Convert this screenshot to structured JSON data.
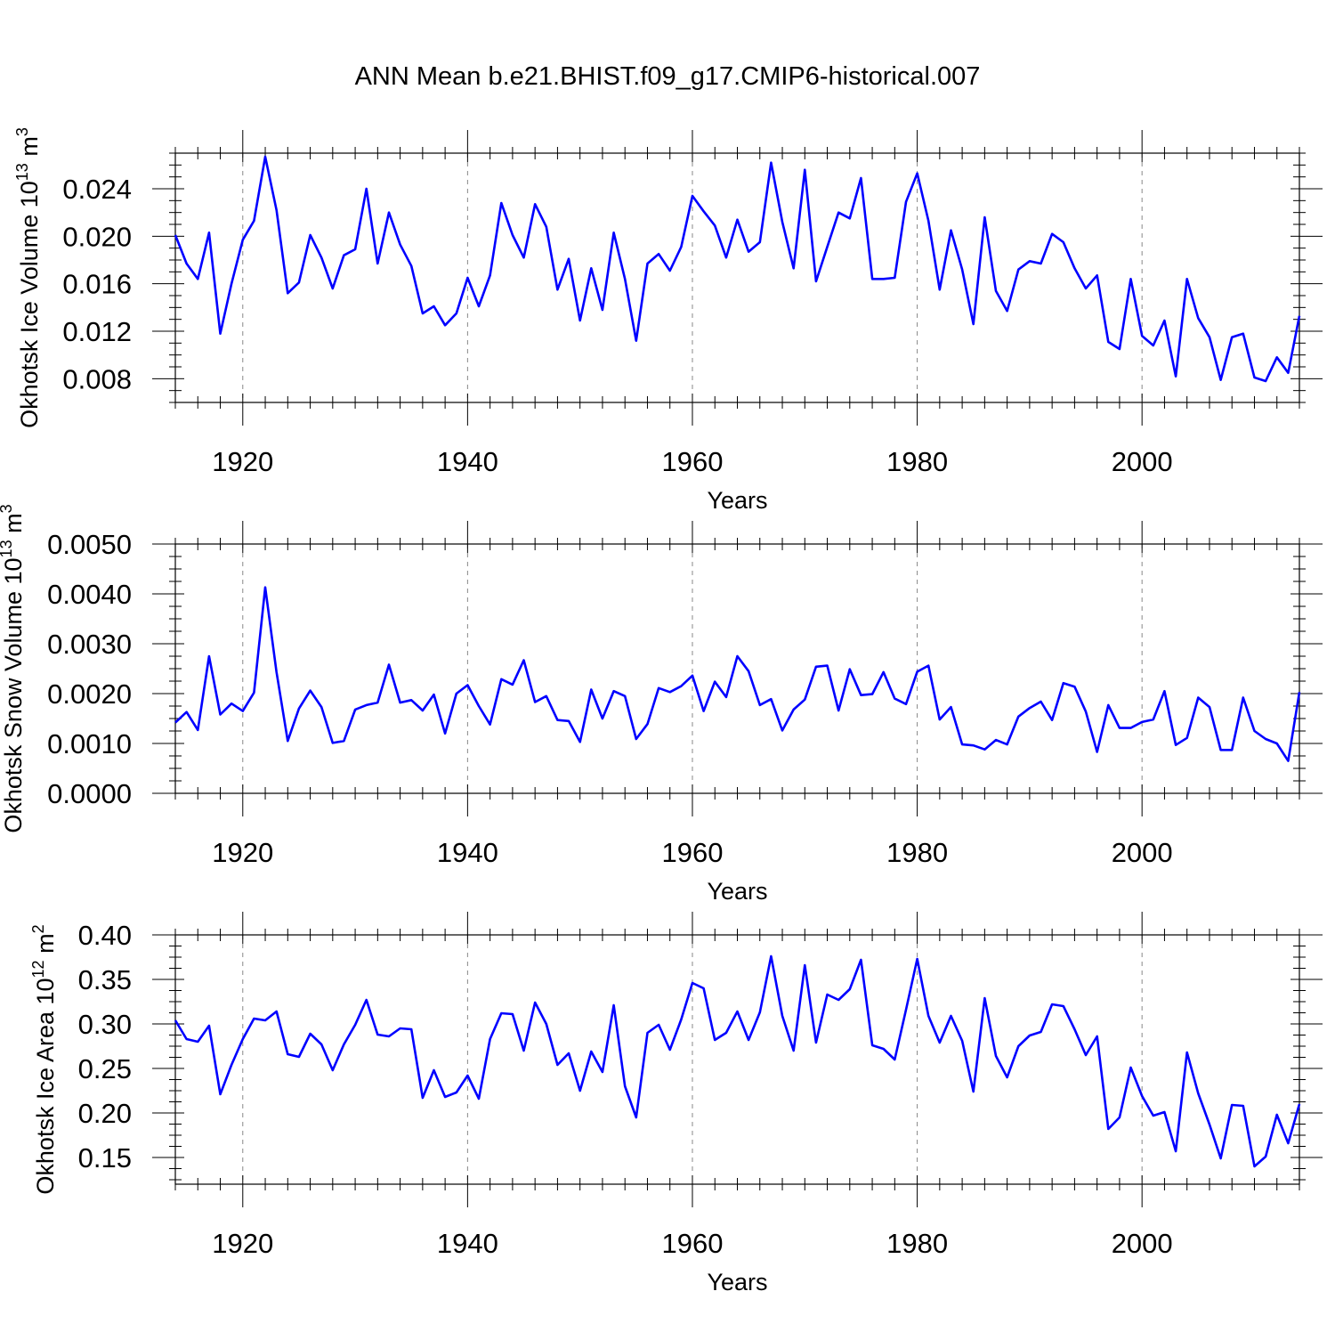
{
  "title": "ANN Mean b.e21.BHIST.f09_g17.CMIP6-historical.007",
  "line_color": "#0000ff",
  "chart_data": [
    {
      "type": "line",
      "xlabel": "Years",
      "ylabel": {
        "main": "Okhotsk Ice Volume 10",
        "exp": "13",
        "unit": " m",
        "unit_exp": "3"
      },
      "x_start": 1914,
      "xlim": [
        1914,
        2014
      ],
      "ylim": [
        0.006,
        0.027
      ],
      "yticks": [
        0.008,
        0.012,
        0.016,
        0.02,
        0.024
      ],
      "yticklabels": [
        "0.008",
        "0.012",
        "0.016",
        "0.020",
        "0.024"
      ],
      "xticks": [
        1920,
        1940,
        1960,
        1980,
        2000
      ],
      "xticklabels": [
        "1920",
        "1940",
        "1960",
        "1980",
        "2000"
      ],
      "grid": "dashed vertical at major x ticks",
      "values": [
        0.0201,
        0.0177,
        0.0164,
        0.0203,
        0.0118,
        0.016,
        0.0197,
        0.0213,
        0.0267,
        0.0222,
        0.0152,
        0.0161,
        0.0201,
        0.0182,
        0.0156,
        0.0184,
        0.0189,
        0.024,
        0.0177,
        0.022,
        0.0193,
        0.0175,
        0.0135,
        0.0141,
        0.0125,
        0.0135,
        0.0165,
        0.0141,
        0.0167,
        0.0228,
        0.0201,
        0.0182,
        0.0227,
        0.0208,
        0.0155,
        0.0181,
        0.0129,
        0.0173,
        0.0138,
        0.0203,
        0.0164,
        0.0112,
        0.0177,
        0.0185,
        0.0171,
        0.0191,
        0.0234,
        0.0221,
        0.0209,
        0.0182,
        0.0214,
        0.0187,
        0.0195,
        0.0262,
        0.0212,
        0.0173,
        0.0256,
        0.0162,
        0.0191,
        0.022,
        0.0215,
        0.0249,
        0.0164,
        0.0164,
        0.0165,
        0.0229,
        0.0253,
        0.0213,
        0.0155,
        0.0205,
        0.0172,
        0.0126,
        0.0216,
        0.0154,
        0.0137,
        0.0172,
        0.0179,
        0.0177,
        0.0202,
        0.0195,
        0.0173,
        0.0156,
        0.0167,
        0.0111,
        0.0105,
        0.0164,
        0.0116,
        0.0108,
        0.0129,
        0.0082,
        0.0164,
        0.0131,
        0.0115,
        0.0079,
        0.0115,
        0.0118,
        0.0081,
        0.0078,
        0.0098,
        0.0085,
        0.0133
      ]
    },
    {
      "type": "line",
      "xlabel": "Years",
      "ylabel": {
        "main": "Okhotsk Snow Volume 10",
        "exp": "13",
        "unit": " m",
        "unit_exp": "3"
      },
      "x_start": 1914,
      "xlim": [
        1914,
        2014
      ],
      "ylim": [
        0.0,
        0.005
      ],
      "yticks": [
        0.0,
        0.001,
        0.002,
        0.003,
        0.004,
        0.005
      ],
      "yticklabels": [
        "0.0000",
        "0.0010",
        "0.0020",
        "0.0030",
        "0.0040",
        "0.0050"
      ],
      "xticks": [
        1920,
        1940,
        1960,
        1980,
        2000
      ],
      "xticklabels": [
        "1920",
        "1940",
        "1960",
        "1980",
        "2000"
      ],
      "grid": "dashed vertical at major x ticks",
      "values": [
        0.00142,
        0.00163,
        0.00127,
        0.00275,
        0.00158,
        0.0018,
        0.00165,
        0.00202,
        0.00413,
        0.00243,
        0.00105,
        0.0017,
        0.00206,
        0.00173,
        0.00101,
        0.00105,
        0.00168,
        0.00177,
        0.00182,
        0.00258,
        0.00182,
        0.00187,
        0.00166,
        0.00198,
        0.0012,
        0.002,
        0.00217,
        0.00175,
        0.00138,
        0.00229,
        0.00218,
        0.00267,
        0.00183,
        0.00195,
        0.00147,
        0.00145,
        0.00103,
        0.00208,
        0.0015,
        0.00205,
        0.00195,
        0.00109,
        0.00139,
        0.00211,
        0.00203,
        0.00215,
        0.00236,
        0.00165,
        0.00224,
        0.00193,
        0.00275,
        0.00245,
        0.00177,
        0.00189,
        0.00126,
        0.00168,
        0.00188,
        0.00254,
        0.00256,
        0.00166,
        0.00249,
        0.00197,
        0.00199,
        0.00243,
        0.0019,
        0.00179,
        0.00244,
        0.00256,
        0.00148,
        0.00173,
        0.00098,
        0.00096,
        0.00088,
        0.00107,
        0.00098,
        0.00154,
        0.00171,
        0.00184,
        0.00147,
        0.00221,
        0.00214,
        0.00164,
        0.00083,
        0.00177,
        0.00131,
        0.00131,
        0.00143,
        0.00148,
        0.00205,
        0.00097,
        0.00111,
        0.00192,
        0.00173,
        0.00087,
        0.00087,
        0.00192,
        0.00125,
        0.00109,
        0.001,
        0.00065,
        0.00203
      ]
    },
    {
      "type": "line",
      "xlabel": "Years",
      "ylabel": {
        "main": "Okhotsk Ice Area 10",
        "exp": "12",
        "unit": " m",
        "unit_exp": "2"
      },
      "x_start": 1914,
      "xlim": [
        1914,
        2014
      ],
      "ylim": [
        0.12,
        0.4
      ],
      "yticks": [
        0.15,
        0.2,
        0.25,
        0.3,
        0.35,
        0.4
      ],
      "yticklabels": [
        "0.15",
        "0.20",
        "0.25",
        "0.30",
        "0.35",
        "0.40"
      ],
      "xticks": [
        1920,
        1940,
        1960,
        1980,
        2000
      ],
      "xticklabels": [
        "1920",
        "1940",
        "1960",
        "1980",
        "2000"
      ],
      "grid": "dashed vertical at major x ticks",
      "values": [
        0.304,
        0.283,
        0.28,
        0.298,
        0.221,
        0.254,
        0.283,
        0.306,
        0.304,
        0.314,
        0.266,
        0.263,
        0.289,
        0.277,
        0.248,
        0.277,
        0.299,
        0.327,
        0.288,
        0.286,
        0.295,
        0.294,
        0.217,
        0.248,
        0.218,
        0.223,
        0.242,
        0.216,
        0.283,
        0.312,
        0.311,
        0.27,
        0.324,
        0.3,
        0.254,
        0.267,
        0.225,
        0.269,
        0.246,
        0.321,
        0.23,
        0.195,
        0.29,
        0.299,
        0.271,
        0.305,
        0.346,
        0.34,
        0.282,
        0.29,
        0.314,
        0.282,
        0.313,
        0.376,
        0.309,
        0.27,
        0.366,
        0.279,
        0.333,
        0.327,
        0.339,
        0.372,
        0.276,
        0.272,
        0.26,
        0.316,
        0.373,
        0.309,
        0.279,
        0.309,
        0.281,
        0.224,
        0.329,
        0.264,
        0.24,
        0.275,
        0.287,
        0.291,
        0.322,
        0.32,
        0.294,
        0.265,
        0.286,
        0.182,
        0.195,
        0.251,
        0.219,
        0.197,
        0.201,
        0.157,
        0.268,
        0.222,
        0.187,
        0.149,
        0.209,
        0.208,
        0.14,
        0.151,
        0.198,
        0.166,
        0.21
      ]
    }
  ]
}
